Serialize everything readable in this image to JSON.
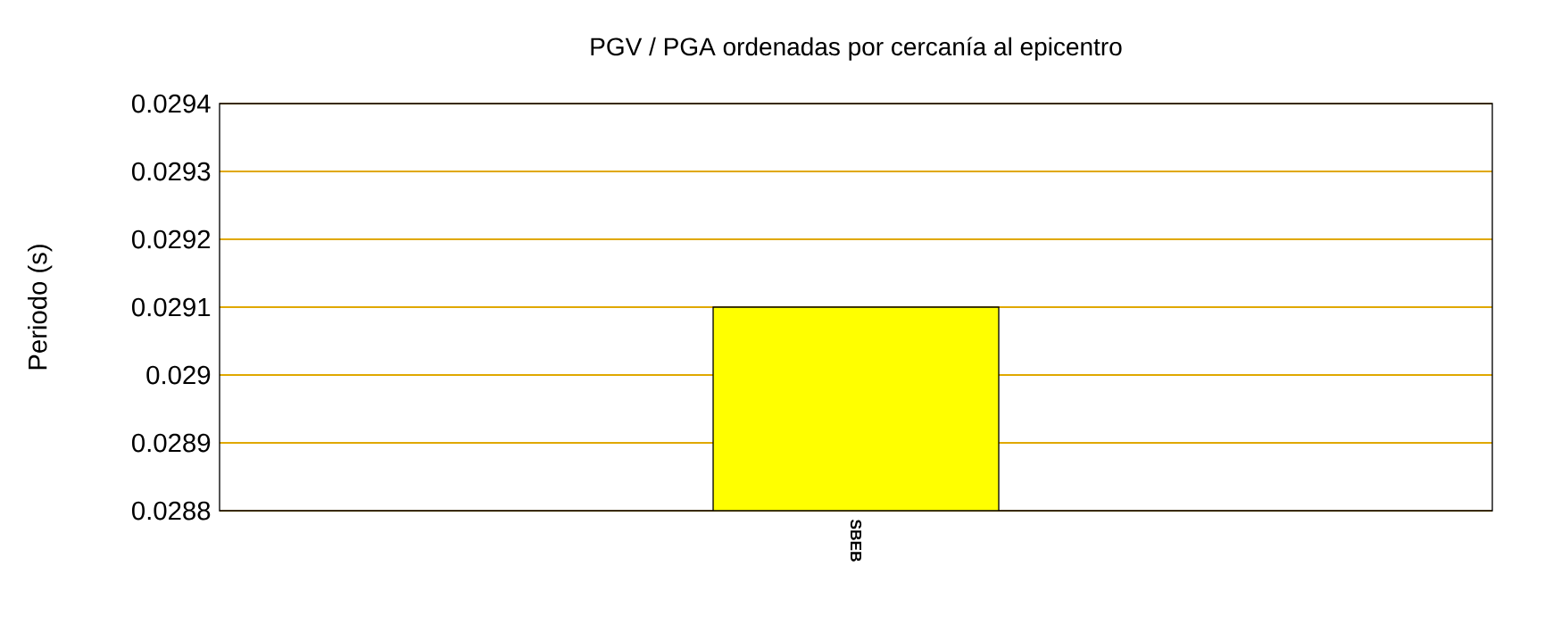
{
  "chart_data": {
    "type": "bar",
    "title": "PGV / PGA ordenadas por cercanía al epicentro",
    "ylabel": "Periodo (s)",
    "categories": [
      "SBEB"
    ],
    "values": [
      0.0291
    ],
    "color": "#ffff00",
    "ylim": [
      0.0288,
      0.0294
    ],
    "yticks": [
      0.0288,
      0.0289,
      0.029,
      0.0291,
      0.0292,
      0.0293,
      0.0294
    ],
    "grid": "y"
  }
}
